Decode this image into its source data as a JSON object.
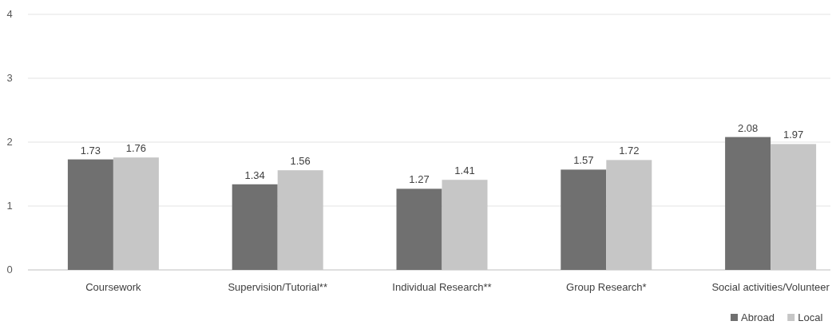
{
  "chart_data": {
    "type": "bar",
    "categories": [
      "Coursework",
      "Supervision/Tutorial**",
      "Individual Research**",
      "Group Research*",
      "Social activities/Volunteer"
    ],
    "series": [
      {
        "name": "Abroad",
        "color": "#707070",
        "values": [
          1.73,
          1.34,
          1.27,
          1.57,
          2.08
        ]
      },
      {
        "name": "Local",
        "color": "#c6c6c6",
        "values": [
          1.76,
          1.56,
          1.41,
          1.72,
          1.97
        ]
      }
    ],
    "ylim": [
      0,
      4
    ],
    "yticks": [
      0,
      1,
      2,
      3,
      4
    ],
    "grid": "y",
    "legend": "bottom right",
    "data_labels": true
  }
}
